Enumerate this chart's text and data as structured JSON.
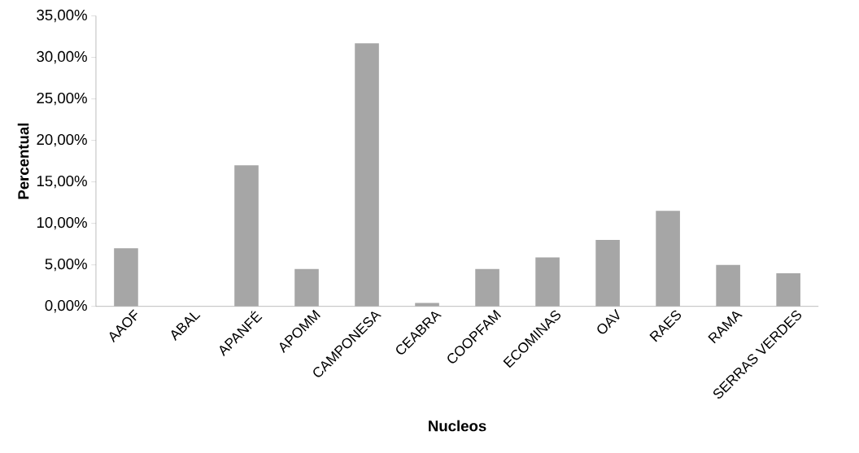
{
  "chart_data": {
    "type": "bar",
    "xlabel": "Nucleos",
    "ylabel": "Percentual",
    "categories": [
      "AAOF",
      "ABAL",
      "APANFÉ",
      "APOMM",
      "CAMPONESA",
      "CEABRA",
      "COOPFAM",
      "ECOMINAS",
      "OAV",
      "RAES",
      "RAMA",
      "SERRAS VERDES"
    ],
    "values": [
      7.0,
      0,
      17.0,
      4.5,
      31.7,
      0.4,
      4.5,
      5.9,
      8.0,
      11.5,
      5.0,
      4.0
    ],
    "color": "#a6a6a6",
    "ylim": [
      0,
      35
    ],
    "yticks": [
      {
        "value": 0,
        "label": "0,00%"
      },
      {
        "value": 5,
        "label": "5,00%"
      },
      {
        "value": 10,
        "label": "10,00%"
      },
      {
        "value": 15,
        "label": "15,00%"
      },
      {
        "value": 20,
        "label": "20,00%"
      },
      {
        "value": 25,
        "label": "25,00%"
      },
      {
        "value": 30,
        "label": "30,00%"
      },
      {
        "value": 35,
        "label": "35,00%"
      }
    ],
    "grid": false
  }
}
